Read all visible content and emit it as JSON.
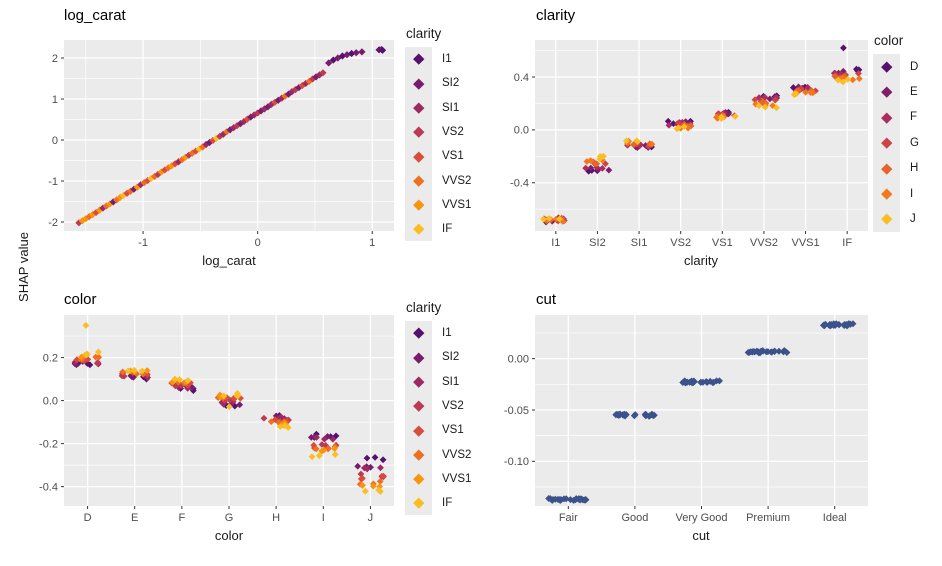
{
  "figure": {
    "y_axis_title": "SHAP value"
  },
  "palettes": {
    "clarity": [
      "#56106E",
      "#781C6D",
      "#9B2964",
      "#BC3A53",
      "#DA4B3D",
      "#ED6F1F",
      "#F8950E",
      "#FABD23"
    ],
    "color": [
      "#56106E",
      "#7E1F6A",
      "#A82F5E",
      "#CC4447",
      "#E8642A",
      "#F37819",
      "#FABD23"
    ],
    "cut_point": "#3B528B",
    "panel_bg": "#EBEBEB",
    "grid": "#FFFFFF",
    "tick_label": "#4D4D4D",
    "text": "#1A1A1A"
  },
  "chart_data": [
    {
      "id": "log_carat",
      "type": "scatter",
      "title": "log_carat",
      "xlabel": "log_carat",
      "ylabel": "SHAP value",
      "legend_title": "clarity",
      "color_by": "clarity",
      "x_tick_vals": [
        -1,
        0,
        1
      ],
      "x_tick_labels": [
        "-1",
        "0",
        "1"
      ],
      "y_tick_vals": [
        2,
        1,
        0,
        -1,
        -2
      ],
      "y_tick_labels": [
        "2",
        "1",
        "0",
        "-1",
        "-2"
      ],
      "xlim": [
        -1.69,
        1.19
      ],
      "ylim": [
        -2.22,
        2.44
      ],
      "points": [
        [
          -1.56,
          -2.02,
          3
        ],
        [
          -1.53,
          -1.97,
          6
        ],
        [
          -1.5,
          -1.92,
          6
        ],
        [
          -1.47,
          -1.87,
          5
        ],
        [
          -1.44,
          -1.82,
          6
        ],
        [
          -1.41,
          -1.77,
          4
        ],
        [
          -1.38,
          -1.71,
          6
        ],
        [
          -1.35,
          -1.66,
          2
        ],
        [
          -1.32,
          -1.61,
          5
        ],
        [
          -1.29,
          -1.56,
          6
        ],
        [
          -1.26,
          -1.51,
          1
        ],
        [
          -1.23,
          -1.46,
          5
        ],
        [
          -1.2,
          -1.4,
          6
        ],
        [
          -1.17,
          -1.35,
          7
        ],
        [
          -1.14,
          -1.3,
          4
        ],
        [
          -1.11,
          -1.25,
          5
        ],
        [
          -1.08,
          -1.2,
          1
        ],
        [
          -1.05,
          -1.15,
          6
        ],
        [
          -1.02,
          -1.09,
          2
        ],
        [
          -0.99,
          -1.04,
          5
        ],
        [
          -0.96,
          -0.99,
          4
        ],
        [
          -0.93,
          -0.94,
          7
        ],
        [
          -0.9,
          -0.89,
          5
        ],
        [
          -0.87,
          -0.84,
          3
        ],
        [
          -0.84,
          -0.78,
          6
        ],
        [
          -0.81,
          -0.73,
          4
        ],
        [
          -0.78,
          -0.68,
          5
        ],
        [
          -0.75,
          -0.63,
          6
        ],
        [
          -0.72,
          -0.58,
          4
        ],
        [
          -0.69,
          -0.53,
          2
        ],
        [
          -0.66,
          -0.48,
          5
        ],
        [
          -0.63,
          -0.42,
          6
        ],
        [
          -0.6,
          -0.37,
          3
        ],
        [
          -0.57,
          -0.32,
          5
        ],
        [
          -0.54,
          -0.27,
          4
        ],
        [
          -0.51,
          -0.22,
          7
        ],
        [
          -0.48,
          -0.17,
          5
        ],
        [
          -0.45,
          -0.11,
          2
        ],
        [
          -0.42,
          -0.06,
          1
        ],
        [
          -0.39,
          -0.01,
          4
        ],
        [
          -0.36,
          0.04,
          7
        ],
        [
          -0.33,
          0.09,
          3
        ],
        [
          -0.3,
          0.14,
          2
        ],
        [
          -0.27,
          0.2,
          5
        ],
        [
          -0.24,
          0.25,
          1
        ],
        [
          -0.21,
          0.3,
          2
        ],
        [
          -0.18,
          0.35,
          3
        ],
        [
          -0.15,
          0.4,
          1
        ],
        [
          -0.12,
          0.45,
          2
        ],
        [
          -0.09,
          0.51,
          4
        ],
        [
          -0.06,
          0.56,
          1
        ],
        [
          -0.03,
          0.61,
          2
        ],
        [
          0.0,
          0.66,
          3
        ],
        [
          0.03,
          0.71,
          1
        ],
        [
          0.06,
          0.76,
          2
        ],
        [
          0.09,
          0.81,
          1
        ],
        [
          0.12,
          0.87,
          2
        ],
        [
          0.15,
          0.92,
          4
        ],
        [
          0.18,
          0.97,
          1
        ],
        [
          0.21,
          1.02,
          2
        ],
        [
          0.24,
          1.07,
          5
        ],
        [
          0.27,
          1.12,
          1
        ],
        [
          0.3,
          1.18,
          2
        ],
        [
          0.33,
          1.23,
          3
        ],
        [
          0.36,
          1.28,
          1
        ],
        [
          0.39,
          1.33,
          4
        ],
        [
          0.42,
          1.38,
          2
        ],
        [
          0.45,
          1.43,
          5
        ],
        [
          0.48,
          1.49,
          3
        ],
        [
          0.51,
          1.54,
          1
        ],
        [
          0.54,
          1.59,
          2
        ],
        [
          0.57,
          1.64,
          3
        ],
        [
          0.62,
          1.88,
          1
        ],
        [
          0.66,
          1.95,
          0
        ],
        [
          0.7,
          2.0,
          1
        ],
        [
          0.74,
          2.05,
          0
        ],
        [
          0.78,
          2.08,
          1
        ],
        [
          0.82,
          2.11,
          0
        ],
        [
          0.86,
          2.13,
          1
        ],
        [
          0.91,
          2.15,
          1
        ],
        [
          1.06,
          2.2,
          0
        ],
        [
          1.08,
          2.21,
          1
        ],
        [
          1.09,
          2.19,
          0
        ]
      ]
    },
    {
      "id": "clarity",
      "type": "jitter-categorical",
      "title": "clarity",
      "xlabel": "clarity",
      "legend_title": "color",
      "color_by": "color",
      "categories": [
        "I1",
        "SI2",
        "SI1",
        "VS2",
        "VS1",
        "VVS2",
        "VVS1",
        "IF"
      ],
      "series": [
        "D",
        "E",
        "F",
        "G",
        "H",
        "I",
        "J"
      ],
      "y_tick_vals": [
        0.4,
        0.0,
        -0.4
      ],
      "y_tick_labels": [
        "0.4",
        "0.0",
        "-0.4"
      ],
      "ylim": [
        -0.765,
        0.68
      ],
      "values": [
        [
          -0.685,
          -0.68,
          -0.675,
          -0.682,
          -0.678,
          -0.684,
          -0.672
        ],
        [
          -0.305,
          -0.295,
          -0.28,
          -0.265,
          -0.248,
          -0.228,
          -0.208
        ],
        [
          -0.132,
          -0.127,
          -0.121,
          -0.116,
          -0.107,
          -0.097,
          -0.088
        ],
        [
          0.056,
          0.051,
          0.046,
          0.04,
          0.032,
          0.024,
          0.016
        ],
        [
          0.126,
          0.122,
          0.117,
          0.112,
          0.103,
          0.096,
          0.09
        ],
        [
          0.252,
          0.246,
          0.237,
          0.226,
          0.21,
          0.192,
          0.176
        ],
        [
          0.327,
          0.321,
          0.312,
          0.302,
          0.29,
          0.277,
          0.265
        ],
        [
          0.447,
          0.437,
          0.427,
          0.416,
          0.404,
          0.39,
          0.375
        ]
      ],
      "extras": [
        [
          7,
          0,
          0.62
        ]
      ]
    },
    {
      "id": "color",
      "type": "jitter-categorical",
      "title": "color",
      "xlabel": "color",
      "legend_title": "clarity",
      "color_by": "clarity",
      "categories": [
        "D",
        "E",
        "F",
        "G",
        "H",
        "I",
        "J"
      ],
      "series": [
        "I1",
        "SI2",
        "SI1",
        "VS2",
        "VS1",
        "VVS2",
        "VVS1",
        "IF"
      ],
      "y_tick_vals": [
        0.2,
        0.0,
        -0.2,
        -0.4
      ],
      "y_tick_labels": [
        "0.2",
        "0.0",
        "-0.2",
        "-0.4"
      ],
      "ylim": [
        -0.49,
        0.398
      ],
      "values": [
        [
          0.168,
          0.171,
          0.174,
          0.179,
          0.188,
          0.198,
          0.209,
          0.219
        ],
        [
          0.108,
          0.111,
          0.114,
          0.118,
          0.124,
          0.129,
          0.134,
          0.139
        ],
        [
          0.054,
          0.059,
          0.064,
          0.069,
          0.077,
          0.084,
          0.09,
          0.096
        ],
        [
          -0.022,
          -0.014,
          -0.007,
          0.0,
          0.007,
          0.014,
          0.02,
          0.026
        ],
        [
          -0.073,
          -0.078,
          -0.083,
          -0.088,
          -0.094,
          -0.099,
          -0.105,
          -0.118
        ],
        [
          -0.163,
          -0.167,
          -0.172,
          -0.208,
          -0.214,
          -0.22,
          -0.23,
          -0.258
        ],
        [
          -0.268,
          -0.303,
          -0.312,
          -0.348,
          -0.358,
          -0.383,
          -0.393,
          -0.418
        ]
      ],
      "extras": [
        [
          0,
          7,
          0.35
        ],
        [
          3,
          7,
          -0.028
        ]
      ]
    },
    {
      "id": "cut",
      "type": "jitter-categorical-single",
      "title": "cut",
      "xlabel": "cut",
      "categories": [
        "Fair",
        "Good",
        "Very Good",
        "Premium",
        "Ideal"
      ],
      "y_tick_vals": [
        0.0,
        -0.05,
        -0.1
      ],
      "y_tick_labels": [
        "0.00",
        "-0.05",
        "-0.10"
      ],
      "ylim": [
        -0.1435,
        0.0425
      ],
      "values": [
        -0.137,
        -0.055,
        -0.0225,
        0.0068,
        0.033
      ],
      "points_per_category": 26
    }
  ],
  "legends": [
    {
      "title": "clarity",
      "labels": [
        "I1",
        "SI2",
        "SI1",
        "VS2",
        "VS1",
        "VVS2",
        "VVS1",
        "IF"
      ],
      "palette": "clarity"
    },
    {
      "title": "color",
      "labels": [
        "D",
        "E",
        "F",
        "G",
        "H",
        "I",
        "J"
      ],
      "palette": "color"
    },
    {
      "title": "clarity",
      "labels": [
        "I1",
        "SI2",
        "SI1",
        "VS2",
        "VS1",
        "VVS2",
        "VVS1",
        "IF"
      ],
      "palette": "clarity"
    }
  ]
}
